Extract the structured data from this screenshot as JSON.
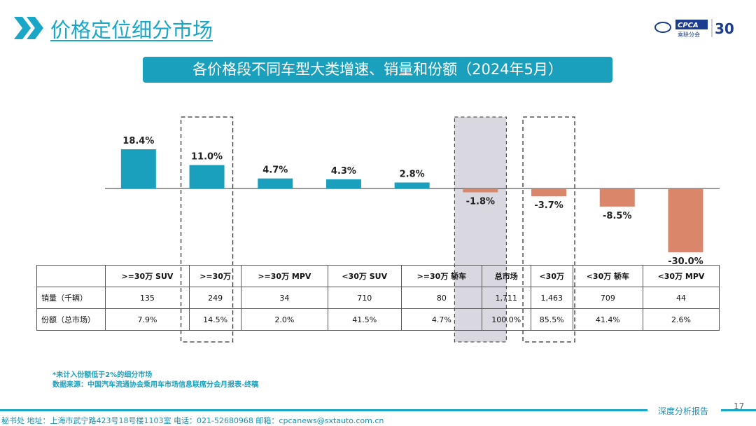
{
  "header": {
    "title": "价格定位细分市场",
    "logo_text": "CPCA 乘联分会",
    "anniversary": "30"
  },
  "banner": "各价格段不同车型大类增速、销量和份额（2024年5月）",
  "chart_data": {
    "type": "bar",
    "categories": [
      ">=30万 SUV",
      ">=30万",
      ">=30万 MPV",
      "<30万 SUV",
      ">=30万 轿车",
      "总市场",
      "<30万",
      "<30万 轿车",
      "<30万 MPV"
    ],
    "values": [
      18.4,
      11.0,
      4.7,
      4.3,
      2.8,
      -1.8,
      -3.7,
      -8.5,
      -30.0
    ],
    "labels": [
      "18.4%",
      "11.0%",
      "4.7%",
      "4.3%",
      "2.8%",
      "-1.8%",
      "-3.7%",
      "-8.5%",
      "-30.0%"
    ],
    "colors": {
      "positive": "#1aa0bd",
      "negative": "#d9866a",
      "highlight": "#d9d8e0"
    },
    "highlighted": [
      "总市场"
    ],
    "dashed_boxes": [
      ">=30万",
      "<30万"
    ]
  },
  "table": {
    "rows": [
      {
        "label": "销量（千辆）",
        "values": [
          "135",
          "249",
          "34",
          "710",
          "80",
          "1,711",
          "1,463",
          "709",
          "44"
        ]
      },
      {
        "label": "份额（总市场）",
        "values": [
          "7.9%",
          "14.5%",
          "2.0%",
          "41.5%",
          "4.7%",
          "100.0%",
          "85.5%",
          "41.4%",
          "2.6%"
        ]
      }
    ]
  },
  "notes": [
    "*未计入份额低于2%的细分市场",
    "数据来源：中国汽车流通协会乘用车市场信息联席分会月报表-终稿"
  ],
  "footer": {
    "text": "秘书处   地址：上海市武宁路423号18号楼1103室    电话：021-52680968    邮箱：cpcanews@sxtauto.com.cn",
    "tag": "深度分析报告",
    "page": "17"
  }
}
